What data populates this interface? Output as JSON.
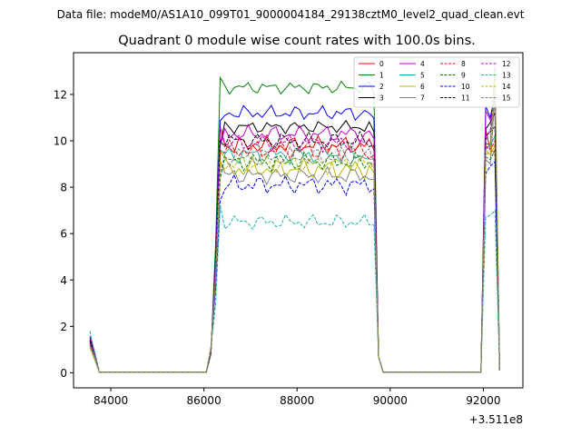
{
  "figure": {
    "suptitle": "Data file: modeM0/AS1A10_099T01_9000004184_29138cztM0_level2_quad_clean.evt",
    "title": "Quadrant 0 module wise count rates with 100.0s bins."
  },
  "chart_data": {
    "type": "line",
    "title": "Quadrant 0 module wise count rates with 100.0s bins.",
    "xlabel": "",
    "ylabel": "",
    "x_offset_label": "+3.511e8",
    "xlim": [
      83200,
      92850
    ],
    "ylim": [
      -0.65,
      13.8
    ],
    "xticks": [
      84000,
      86000,
      88000,
      90000,
      92000
    ],
    "xtick_labels": [
      "84000",
      "86000",
      "88000",
      "90000",
      "92000"
    ],
    "yticks": [
      0,
      2,
      4,
      6,
      8,
      10,
      12
    ],
    "ytick_labels": [
      "0",
      "2",
      "4",
      "6",
      "8",
      "10",
      "12"
    ],
    "legend_position": "top-right",
    "segments": [
      {
        "start": 83550,
        "n": 3
      },
      {
        "start": 83750,
        "n": 24
      },
      {
        "start": 86150,
        "n": 37
      },
      {
        "start": 89850,
        "n": 22
      },
      {
        "start": 92050,
        "n": 4
      }
    ],
    "series": [
      {
        "name": "0",
        "color": "#ff0000",
        "dash": "solid",
        "first": [
          1.2,
          0.7,
          0.05
        ],
        "level": 9.8,
        "amp": 0.45,
        "end": [
          10.5,
          9.6,
          9.5,
          0.1
        ]
      },
      {
        "name": "1",
        "color": "#008000",
        "dash": "solid",
        "first": [
          1.3,
          0.8,
          0.05
        ],
        "level": 12.3,
        "amp": 0.3,
        "end": [
          9.9,
          9.8,
          13.2,
          0.1
        ]
      },
      {
        "name": "2",
        "color": "#0000ff",
        "dash": "solid",
        "first": [
          1.4,
          0.8,
          0.05
        ],
        "level": 11.2,
        "amp": 0.35,
        "end": [
          11.5,
          11.0,
          12.0,
          0.1
        ]
      },
      {
        "name": "3",
        "color": "#000000",
        "dash": "solid",
        "first": [
          1.5,
          0.9,
          0.05
        ],
        "level": 10.6,
        "amp": 0.3,
        "end": [
          10.5,
          10.8,
          11.2,
          0.1
        ]
      },
      {
        "name": "4",
        "color": "#c000c0",
        "dash": "solid",
        "first": [
          1.6,
          0.9,
          0.05
        ],
        "level": 10.3,
        "amp": 0.4,
        "end": [
          11.3,
          10.9,
          11.7,
          0.1
        ]
      },
      {
        "name": "5",
        "color": "#20b2aa",
        "dash": "solid",
        "first": [
          1.2,
          0.7,
          0.05
        ],
        "level": 9.4,
        "amp": 0.45,
        "end": [
          9.7,
          9.8,
          10.2,
          0.1
        ]
      },
      {
        "name": "6",
        "color": "#b8b800",
        "dash": "solid",
        "first": [
          1.1,
          0.6,
          0.05
        ],
        "level": 8.8,
        "amp": 0.5,
        "end": [
          9.6,
          9.4,
          9.8,
          0.1
        ]
      },
      {
        "name": "7",
        "color": "#808080",
        "dash": "solid",
        "first": [
          1.2,
          0.7,
          0.05
        ],
        "level": 8.5,
        "amp": 0.4,
        "end": [
          9.2,
          9.0,
          12.0,
          0.1
        ]
      },
      {
        "name": "8",
        "color": "#ff0000",
        "dash": "dashed",
        "first": [
          1.3,
          0.8,
          0.05
        ],
        "level": 9.6,
        "amp": 0.45,
        "end": [
          9.8,
          9.6,
          10.0,
          0.1
        ]
      },
      {
        "name": "9",
        "color": "#008000",
        "dash": "dashed",
        "first": [
          1.2,
          0.7,
          0.05
        ],
        "level": 9.1,
        "amp": 0.45,
        "end": [
          9.3,
          9.2,
          9.6,
          0.1
        ]
      },
      {
        "name": "10",
        "color": "#0000ff",
        "dash": "dashed",
        "first": [
          1.1,
          0.6,
          0.05
        ],
        "level": 8.1,
        "amp": 0.45,
        "end": [
          8.6,
          8.9,
          9.1,
          0.1
        ]
      },
      {
        "name": "11",
        "color": "#000000",
        "dash": "dashed",
        "first": [
          1.4,
          0.8,
          0.05
        ],
        "level": 10.0,
        "amp": 0.4,
        "end": [
          10.2,
          10.4,
          10.6,
          0.1
        ]
      },
      {
        "name": "12",
        "color": "#c000c0",
        "dash": "dashed",
        "first": [
          1.3,
          0.8,
          0.05
        ],
        "level": 9.9,
        "amp": 0.4,
        "end": [
          10.0,
          10.5,
          12.0,
          0.1
        ]
      },
      {
        "name": "13",
        "color": "#20b2aa",
        "dash": "dashed",
        "first": [
          1.8,
          0.9,
          0.05
        ],
        "level": 6.5,
        "amp": 0.35,
        "end": [
          6.7,
          6.8,
          7.0,
          0.1
        ]
      },
      {
        "name": "14",
        "color": "#b8b800",
        "dash": "dashed",
        "first": [
          1.1,
          0.6,
          0.05
        ],
        "level": 9.0,
        "amp": 0.45,
        "end": [
          9.4,
          9.5,
          13.0,
          0.1
        ]
      },
      {
        "name": "15",
        "color": "#808080",
        "dash": "dashed",
        "first": [
          1.2,
          0.7,
          0.05
        ],
        "level": 9.3,
        "amp": 0.45,
        "end": [
          9.6,
          9.9,
          12.2,
          0.1
        ]
      }
    ]
  }
}
